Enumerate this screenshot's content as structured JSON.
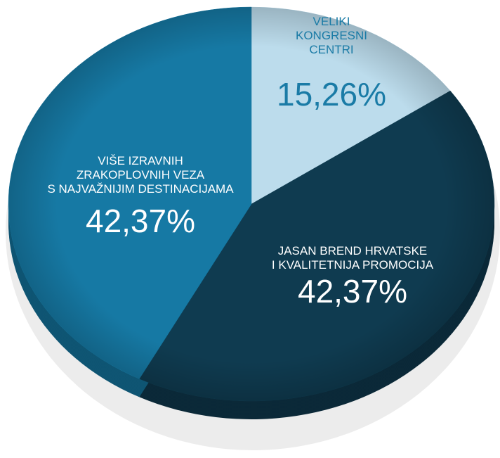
{
  "chart_data": {
    "type": "pie",
    "categories": [
      "VELIKI\nKONGRESNI\nCENTRI",
      "JASAN BREND HRVATSKE\nI KVALITETNIJA PROMOCIJA",
      "VIŠE IZRAVNIH\nZRAKOPLOVNIH VEZA\nS NAJVAŽNIJIM DESTINACIJAMA"
    ],
    "values": [
      15.26,
      42.37,
      42.37
    ],
    "value_labels": [
      "15,26%",
      "42,37%",
      "42,37%"
    ],
    "colors": [
      "#bcdcec",
      "#0f3b50",
      "#1679a4"
    ]
  }
}
